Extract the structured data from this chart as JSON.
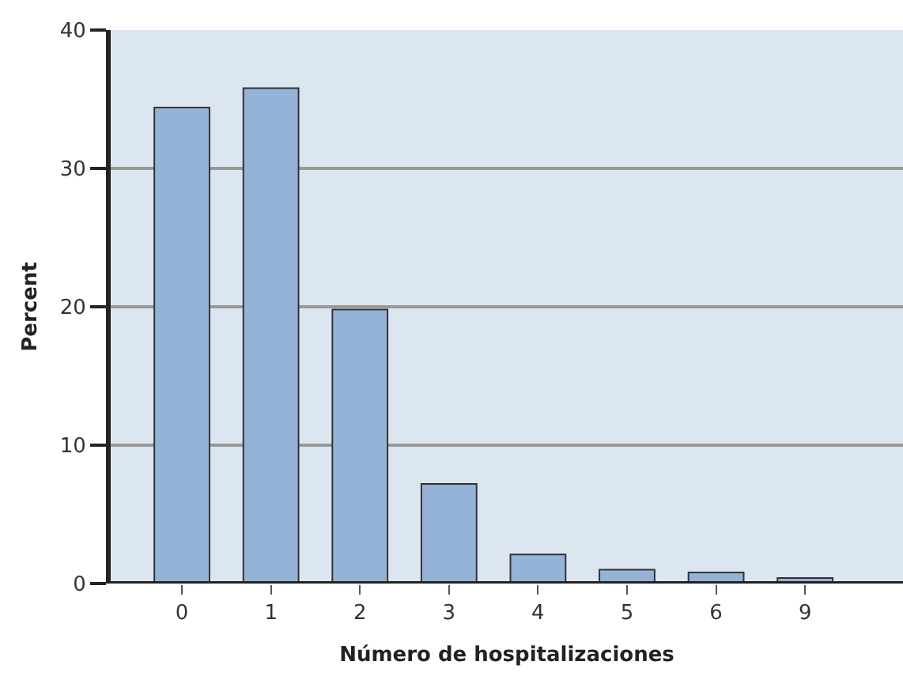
{
  "chart_data": {
    "type": "bar",
    "xlabel": "Número de hospitalizaciones",
    "ylabel": "Percent",
    "categories": [
      "0",
      "1",
      "2",
      "3",
      "4",
      "5",
      "6",
      "9"
    ],
    "values": [
      34.4,
      35.8,
      19.8,
      7.2,
      2.1,
      1.0,
      0.8,
      0.4
    ],
    "color": "#95b3d7",
    "ylim": [
      0,
      40
    ],
    "yticks": [
      0,
      10,
      20,
      30,
      40
    ],
    "grid": "y"
  }
}
